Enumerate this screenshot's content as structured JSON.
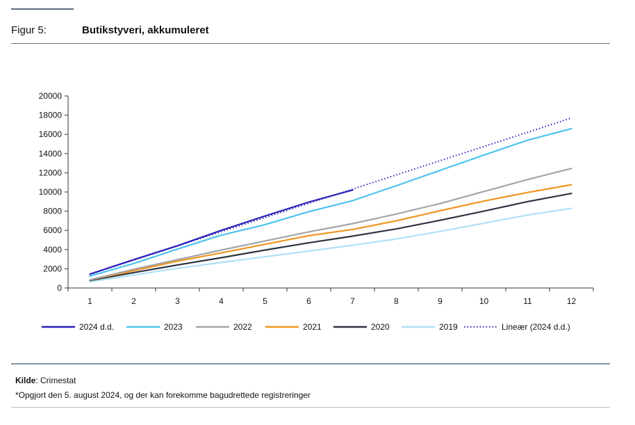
{
  "header": {
    "figure_label": "Figur 5:",
    "title": "Butikstyveri, akkumuleret"
  },
  "footer": {
    "source_label": "Kilde",
    "source_text": ": Crimestat",
    "note": "*Opgjort den 5. august 2024, og der kan forekomme bagudrettede registreringer"
  },
  "chart_data": {
    "type": "line",
    "title": "Butikstyveri, akkumuleret",
    "xlabel": "",
    "ylabel": "",
    "x": [
      1,
      2,
      3,
      4,
      5,
      6,
      7,
      8,
      9,
      10,
      11,
      12
    ],
    "ylim": [
      0,
      20000
    ],
    "yticks": [
      0,
      2000,
      4000,
      6000,
      8000,
      10000,
      12000,
      14000,
      16000,
      18000,
      20000
    ],
    "grid": false,
    "legend_position": "bottom",
    "series": [
      {
        "name": "2024 d.d.",
        "color": "#2a1fb8",
        "style": "solid",
        "values": [
          1450,
          2950,
          4400,
          6000,
          7500,
          8950,
          10200,
          null,
          null,
          null,
          null,
          null
        ]
      },
      {
        "name": "2023",
        "color": "#4cc3ee",
        "style": "solid",
        "values": [
          1250,
          2550,
          4050,
          5500,
          6600,
          7950,
          9100,
          10650,
          12250,
          13850,
          15400,
          16600
        ]
      },
      {
        "name": "2022",
        "color": "#a3a5a8",
        "style": "solid",
        "values": [
          850,
          1950,
          2950,
          3950,
          4900,
          5850,
          6700,
          7700,
          8800,
          10050,
          11300,
          12450
        ]
      },
      {
        "name": "2021",
        "color": "#f0931f",
        "style": "solid",
        "values": [
          850,
          1800,
          2800,
          3650,
          4550,
          5450,
          6100,
          7000,
          8050,
          9050,
          9950,
          10750
        ]
      },
      {
        "name": "2020",
        "color": "#2e3440",
        "style": "solid",
        "values": [
          780,
          1600,
          2400,
          3150,
          3950,
          4700,
          5400,
          6150,
          7050,
          8000,
          9000,
          9850
        ]
      },
      {
        "name": "2019",
        "color": "#aee0f5",
        "style": "solid",
        "values": [
          650,
          1350,
          2050,
          2650,
          3250,
          3850,
          4450,
          5100,
          5900,
          6750,
          7600,
          8300
        ]
      },
      {
        "name": "Lineær (2024 d.d.)",
        "color": "#2a1fb8",
        "style": "dotted",
        "values": [
          1420,
          2900,
          4380,
          5860,
          7340,
          8820,
          10300,
          11780,
          13260,
          14740,
          16220,
          17700
        ]
      }
    ]
  }
}
